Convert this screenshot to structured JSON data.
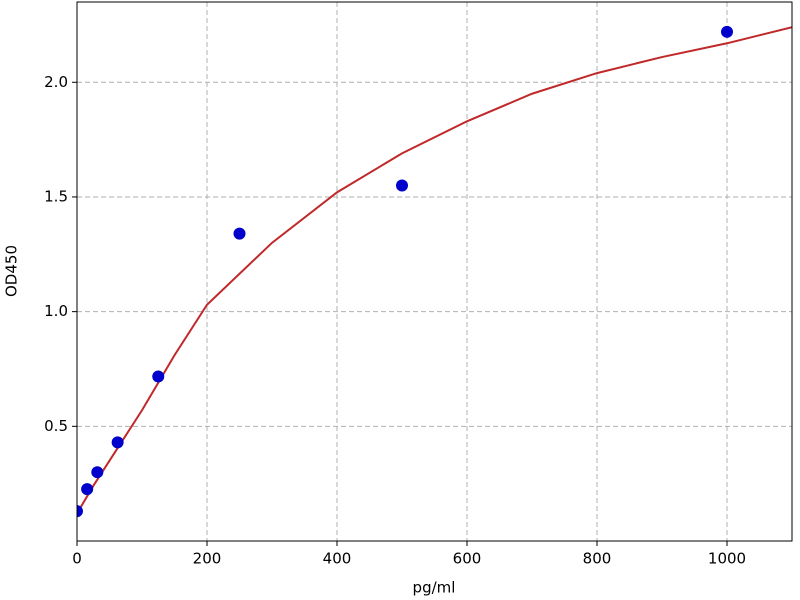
{
  "chart_data": {
    "type": "scatter",
    "x_label": "pg/ml",
    "y_label": "OD450",
    "xlim": [
      0,
      1100
    ],
    "ylim": [
      0,
      2.35
    ],
    "xticks": [
      0,
      200,
      400,
      600,
      800,
      1000
    ],
    "yticks": [
      0.5,
      {
        "value": 1,
        "label": "1.0"
      },
      1.5,
      {
        "value": 2,
        "label": "2.0"
      }
    ],
    "grid": true,
    "series": [
      {
        "mode": "line",
        "color": "#c0282a",
        "x": [
          0,
          25,
          50,
          100,
          150,
          200,
          300,
          400,
          500,
          600,
          700,
          800,
          900,
          1000,
          1100
        ],
        "values": [
          0.12,
          0.24,
          0.35,
          0.57,
          0.81,
          1.03,
          1.3,
          1.52,
          1.69,
          1.83,
          1.95,
          2.04,
          2.11,
          2.17,
          2.24
        ]
      },
      {
        "mode": "markers",
        "color": "#0000cc",
        "x": [
          0,
          15.6,
          31.25,
          62.5,
          125,
          250,
          500,
          1000
        ],
        "values": [
          0.13,
          0.226,
          0.3,
          0.43,
          0.717,
          1.34,
          1.55,
          2.22
        ]
      }
    ]
  }
}
